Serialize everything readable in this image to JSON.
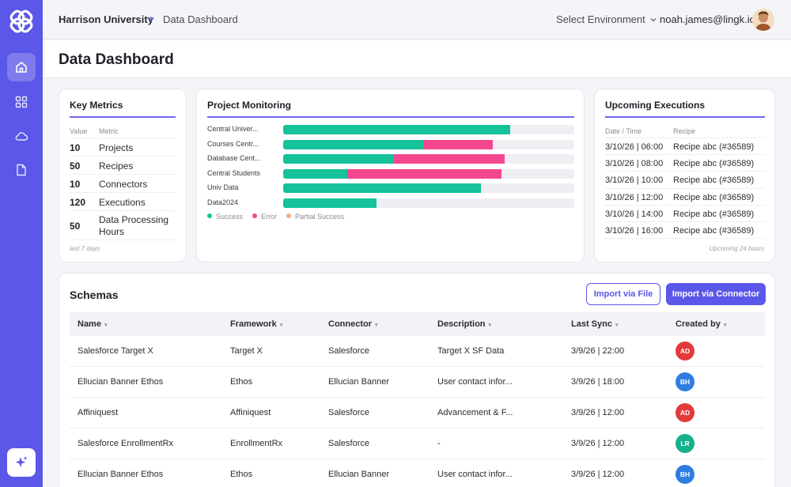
{
  "header": {
    "org": "Harrison University",
    "separator": "▸",
    "page": "Data Dashboard",
    "environment_select": "Select Environment",
    "user_email": "noah.james@lingk.io"
  },
  "page_title": "Data Dashboard",
  "key_metrics": {
    "title": "Key Metrics",
    "col_value": "Value",
    "col_metric": "Metric",
    "rows": [
      {
        "value": "10",
        "metric": "Projects"
      },
      {
        "value": "50",
        "metric": "Recipes"
      },
      {
        "value": "10",
        "metric": "Connectors"
      },
      {
        "value": "120",
        "metric": "Executions"
      },
      {
        "value": "50",
        "metric": "Data Processing Hours"
      }
    ],
    "footer": "last 7 days"
  },
  "project_monitoring": {
    "title": "Project Monitoring",
    "projects": [
      {
        "name": "Central Univer...",
        "success": 0.78,
        "error": 0.0,
        "partial": 0.0
      },
      {
        "name": "Courses Centr...",
        "success": 0.48,
        "error": 0.24,
        "partial": 0.0
      },
      {
        "name": "Database Cent...",
        "success": 0.38,
        "error": 0.38,
        "partial": 0.0
      },
      {
        "name": "Central Students",
        "success": 0.22,
        "error": 0.53,
        "partial": 0.0
      },
      {
        "name": "Univ Data",
        "success": 0.68,
        "error": 0.0,
        "partial": 0.0
      },
      {
        "name": "Data2024",
        "success": 0.32,
        "error": 0.0,
        "partial": 0.0
      }
    ],
    "legend": [
      {
        "label": "Success",
        "color": "#15c29a"
      },
      {
        "label": "Error",
        "color": "#f5478f"
      },
      {
        "label": "Partial Success",
        "color": "#f2a98a"
      }
    ]
  },
  "upcoming_executions": {
    "title": "Upcoming Executions",
    "col_date": "Date / Time",
    "col_recipe": "Recipe",
    "rows": [
      {
        "date": "3/10/26 | 06:00",
        "recipe": "Recipe abc (#36589)"
      },
      {
        "date": "3/10/26 | 08:00",
        "recipe": "Recipe abc (#36589)"
      },
      {
        "date": "3/10/26 | 10:00",
        "recipe": "Recipe abc (#36589)"
      },
      {
        "date": "3/10/26 | 12:00",
        "recipe": "Recipe abc (#36589)"
      },
      {
        "date": "3/10/26 | 14:00",
        "recipe": "Recipe abc (#36589)"
      },
      {
        "date": "3/10/26 | 16:00",
        "recipe": "Recipe abc (#36589)"
      }
    ],
    "footer": "Upcoming 24 hours"
  },
  "schemas": {
    "title": "Schemas",
    "import_file_label": "Import via File",
    "import_connector_label": "Import via Connector",
    "columns": [
      "Name",
      "Framework",
      "Connector",
      "Description",
      "Last Sync",
      "Created by"
    ],
    "rows": [
      {
        "name": "Salesforce Target X",
        "framework": "Target X",
        "connector": "Salesforce",
        "description": "Target X SF Data",
        "last_sync": "3/9/26 | 22:00",
        "initials": "AD",
        "color": "#e23a3a"
      },
      {
        "name": "Ellucian Banner Ethos",
        "framework": "Ethos",
        "connector": "Ellucian Banner",
        "description": "User contact infor...",
        "last_sync": "3/9/26 | 18:00",
        "initials": "BH",
        "color": "#2f7de1"
      },
      {
        "name": "Affiniquest",
        "framework": "Affiniquest",
        "connector": "Salesforce",
        "description": "Advancement & F...",
        "last_sync": "3/9/26 | 12:00",
        "initials": "AD",
        "color": "#e23a3a"
      },
      {
        "name": "Salesforce EnrollmentRx",
        "framework": "EnrollmentRx",
        "connector": "Salesforce",
        "description": "-",
        "last_sync": "3/9/26 | 12:00",
        "initials": "LR",
        "color": "#16b08a"
      },
      {
        "name": "Ellucian Banner Ethos",
        "framework": "Ethos",
        "connector": "Ellucian Banner",
        "description": "User contact infor...",
        "last_sync": "3/9/26 | 12:00",
        "initials": "BH",
        "color": "#2f7de1"
      }
    ]
  },
  "colors": {
    "brand": "#5b57e8",
    "success": "#15c29a",
    "error": "#f5478f",
    "partial": "#f2a98a"
  },
  "icons": [
    "logo-icon",
    "home-icon",
    "grid-icon",
    "cloud-icon",
    "document-icon",
    "sparkle-icon",
    "chevron-down-icon"
  ]
}
